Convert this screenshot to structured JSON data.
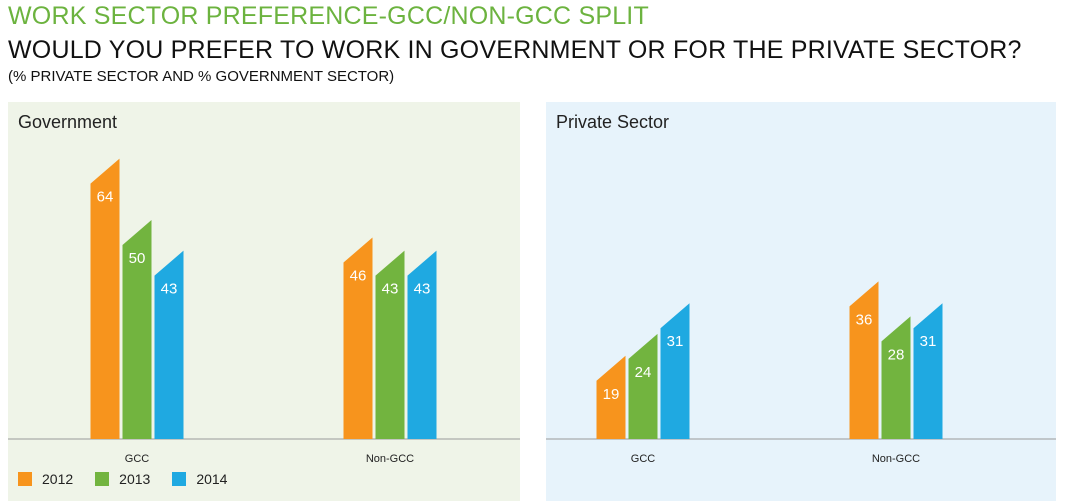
{
  "header": {
    "kicker": "WORK SECTOR PREFERENCE-GCC/NON-GCC SPLIT",
    "title": "WOULD YOU PREFER TO WORK IN GOVERNMENT OR FOR THE PRIVATE SECTOR?",
    "subtitle": "(% PRIVATE SECTOR AND % GOVERNMENT SECTOR)"
  },
  "colors": {
    "2012": "#f7941d",
    "2013": "#72b43f",
    "2014": "#1fa9e1",
    "kicker": "#6cb33f",
    "gov_panel_bg": "#eff4e8",
    "priv_panel_bg": "#e7f3fb"
  },
  "legend": [
    {
      "label": "2012",
      "color_key": "2012"
    },
    {
      "label": "2013",
      "color_key": "2013"
    },
    {
      "label": "2014",
      "color_key": "2014"
    }
  ],
  "chart_data": [
    {
      "type": "bar",
      "title": "Government",
      "categories": [
        "GCC",
        "Non-GCC"
      ],
      "series": [
        {
          "name": "2012",
          "values": [
            64,
            46
          ]
        },
        {
          "name": "2013",
          "values": [
            50,
            43
          ]
        },
        {
          "name": "2014",
          "values": [
            43,
            43
          ]
        }
      ],
      "ylim": [
        0,
        70
      ],
      "legend_position": "bottom-left"
    },
    {
      "type": "bar",
      "title": "Private Sector",
      "categories": [
        "GCC",
        "Non-GCC"
      ],
      "series": [
        {
          "name": "2012",
          "values": [
            19,
            36
          ]
        },
        {
          "name": "2013",
          "values": [
            24,
            28
          ]
        },
        {
          "name": "2014",
          "values": [
            31,
            31
          ]
        }
      ],
      "ylim": [
        0,
        70
      ],
      "legend_position": "bottom-left"
    }
  ]
}
